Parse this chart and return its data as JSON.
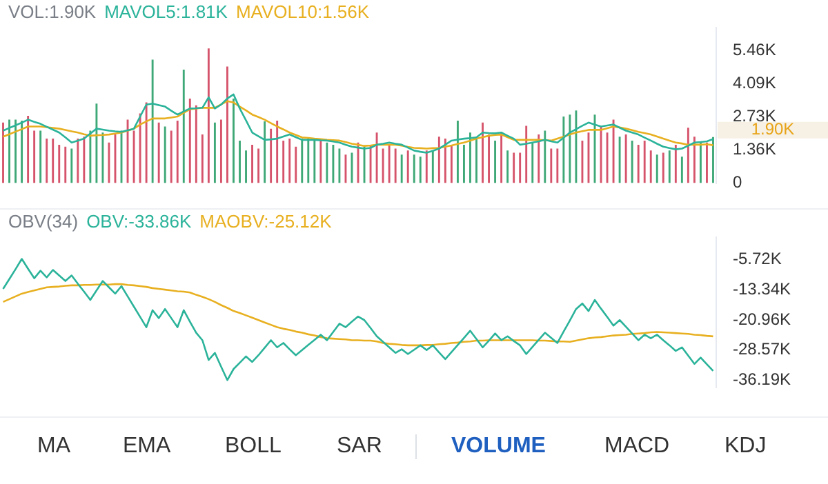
{
  "chart_data": [
    {
      "type": "bar",
      "title": "VOL:1.90K",
      "legend": "top left",
      "tick_labels": "y",
      "marker": "none",
      "categories": [
        null,
        null,
        null,
        null,
        null,
        null,
        null,
        null,
        null,
        null,
        null,
        null,
        null,
        null,
        null,
        null,
        null,
        null,
        null,
        null,
        null,
        null,
        null,
        null,
        null,
        null,
        null,
        null,
        null,
        null,
        null,
        null,
        null,
        null,
        null,
        null,
        null,
        null,
        null,
        null,
        null,
        null,
        null,
        null,
        null,
        null,
        null,
        null,
        null,
        null,
        null,
        null,
        null,
        null,
        null,
        null,
        null,
        null,
        null,
        null,
        null,
        null,
        null,
        null,
        null,
        null,
        null,
        null,
        null,
        null,
        null,
        null,
        null,
        null,
        null,
        null,
        null,
        null,
        null,
        null,
        null,
        null,
        null,
        null,
        null,
        null,
        null,
        null,
        null,
        null,
        null,
        null,
        null,
        null,
        null,
        null,
        null,
        null,
        null,
        null,
        null,
        null,
        null,
        null,
        null,
        null,
        null,
        null,
        null,
        null,
        null,
        null,
        null,
        null,
        null
      ],
      "series": [
        {
          "type": "bar",
          "colors": [
            "#d6546b",
            "#3fa877",
            "#3fa877",
            "#3fa877",
            "#d6546b",
            "#d6546b",
            "#3fa877",
            "#d6546b",
            "#d6546b",
            "#d6546b",
            "#d6546b",
            "#3fa877",
            "#d6546b",
            "#d6546b",
            "#3fa877",
            "#3fa877",
            "#3fa877",
            "#d6546b",
            "#d6546b",
            "#3fa877",
            "#d6546b",
            "#d6546b",
            "#d6546b",
            "#d6546b",
            "#3fa877",
            "#d6546b",
            "#3fa877",
            "#d6546b",
            "#d6546b",
            "#3fa877",
            "#d6546b",
            "#d6546b",
            "#d6546b",
            "#d6546b",
            "#3fa877",
            "#d6546b",
            "#d6546b",
            "#3fa877",
            "#3fa877",
            "#3fa877",
            "#d6546b",
            "#d6546b",
            "#3fa877",
            "#d6546b",
            "#d6546b",
            "#d6546b",
            "#d6546b",
            "#d6546b",
            "#3fa877",
            "#3fa877",
            "#3fa877",
            "#d6546b",
            "#3fa877",
            "#3fa877",
            "#3fa877",
            "#d6546b",
            "#3fa877",
            "#d6546b",
            "#3fa877",
            "#d6546b",
            "#d6546b",
            "#d6546b",
            "#d6546b",
            "#d6546b",
            "#3fa877",
            "#d6546b",
            "#3fa877",
            "#3fa877",
            "#d6546b",
            "#3fa877",
            "#d6546b",
            "#d6546b",
            "#d6546b",
            "#3fa877",
            "#3fa877",
            "#3fa877",
            "#3fa877",
            "#d6546b",
            "#d6546b",
            "#3fa877",
            "#d6546b",
            "#3fa877",
            "#d6546b",
            "#d6546b",
            "#d6546b",
            "#3fa877",
            "#d6546b",
            "#3fa877",
            "#d6546b",
            "#d6546b",
            "#3fa877",
            "#3fa877",
            "#3fa877",
            "#d6546b",
            "#d6546b",
            "#3fa877",
            "#d6546b",
            "#d6546b",
            "#d6546b",
            "#3fa877",
            "#d6546b",
            "#3fa877",
            "#d6546b",
            "#d6546b",
            "#d6546b",
            "#3fa877",
            "#d6546b",
            "#3fa877",
            "#d6546b",
            "#3fa877",
            "#d6546b",
            "#d6546b",
            "#3fa877",
            "#d6546b",
            "#3fa877"
          ],
          "values": [
            2490,
            2610,
            2610,
            2570,
            2770,
            2160,
            2160,
            1830,
            1830,
            1580,
            1500,
            1420,
            1830,
            1910,
            2160,
            3270,
            2080,
            1670,
            2000,
            2160,
            2610,
            2160,
            2870,
            3320,
            5080,
            2490,
            2330,
            2160,
            2570,
            4670,
            3480,
            3200,
            2000,
            5540,
            2490,
            2610,
            4800,
            3480,
            1750,
            1340,
            1580,
            1420,
            2540,
            2240,
            2570,
            1750,
            1830,
            1500,
            1830,
            1830,
            1750,
            1750,
            1670,
            1580,
            1420,
            1170,
            1250,
            1670,
            1500,
            1580,
            2080,
            1420,
            1580,
            1420,
            1170,
            1340,
            1170,
            1090,
            1340,
            1340,
            1910,
            1830,
            1580,
            2570,
            1580,
            2080,
            1910,
            2490,
            2000,
            1750,
            2080,
            1340,
            1250,
            1250,
            2360,
            1670,
            2000,
            2160,
            1420,
            1420,
            2740,
            2820,
            2990,
            1750,
            2080,
            2820,
            2330,
            2080,
            2610,
            1910,
            2000,
            1750,
            1580,
            1750,
            1340,
            1170,
            1250,
            1340,
            1580,
            1090,
            2280,
            1910,
            1670,
            1670,
            1900
          ]
        },
        {
          "type": "line",
          "name": "MAVOL5:1.81K",
          "color": "#2bb39a",
          "values": [
            2160,
            2270,
            2380,
            2490,
            2610,
            2520,
            2440,
            2320,
            2200,
            2080,
            1880,
            1670,
            1750,
            1830,
            2040,
            2240,
            2200,
            2160,
            2130,
            2110,
            2170,
            2240,
            2740,
            3230,
            3270,
            3210,
            3150,
            2980,
            2820,
            2950,
            3070,
            3080,
            3100,
            3530,
            3070,
            3230,
            3480,
            3650,
            3070,
            2580,
            2080,
            1930,
            1780,
            1800,
            1830,
            1920,
            2000,
            1890,
            1780,
            1780,
            1780,
            1760,
            1750,
            1710,
            1670,
            1580,
            1500,
            1460,
            1420,
            1450,
            1580,
            1620,
            1670,
            1620,
            1580,
            1460,
            1340,
            1290,
            1250,
            1330,
            1420,
            1580,
            1750,
            1790,
            1830,
            1850,
            1880,
            2080,
            2060,
            2050,
            2080,
            1950,
            1830,
            1580,
            1620,
            1670,
            1720,
            1780,
            1720,
            1670,
            1870,
            2080,
            2220,
            2360,
            2490,
            2410,
            2330,
            2370,
            2410,
            2280,
            2160,
            2080,
            2000,
            1870,
            1750,
            1620,
            1500,
            1440,
            1390,
            1420,
            1540,
            1670,
            1690,
            1720,
            1810
          ]
        },
        {
          "type": "line",
          "name": "MAVOL10:1.56K",
          "color": "#e8b020",
          "values": [
            1910,
            2010,
            2120,
            2220,
            2330,
            2330,
            2330,
            2300,
            2270,
            2240,
            2190,
            2130,
            2080,
            2010,
            1950,
            1970,
            1980,
            2000,
            2040,
            2080,
            2160,
            2240,
            2410,
            2540,
            2660,
            2660,
            2660,
            2700,
            2740,
            2890,
            3040,
            3070,
            3100,
            3100,
            3100,
            3240,
            3370,
            3320,
            3150,
            2990,
            2820,
            2720,
            2610,
            2470,
            2330,
            2210,
            2080,
            1980,
            1880,
            1860,
            1830,
            1810,
            1780,
            1770,
            1750,
            1690,
            1620,
            1580,
            1530,
            1550,
            1580,
            1580,
            1580,
            1580,
            1540,
            1490,
            1450,
            1440,
            1420,
            1440,
            1450,
            1500,
            1550,
            1610,
            1670,
            1750,
            1830,
            1890,
            1950,
            1980,
            2000,
            1890,
            1780,
            1780,
            1780,
            1780,
            1780,
            1770,
            1750,
            1830,
            1910,
            2000,
            2080,
            2140,
            2190,
            2190,
            2190,
            2260,
            2330,
            2290,
            2240,
            2180,
            2110,
            2060,
            2000,
            1920,
            1830,
            1750,
            1670,
            1630,
            1580,
            1580,
            1580,
            1600,
            1560
          ]
        }
      ],
      "ylim": [
        0,
        6400
      ],
      "yticks": [
        0,
        {
          "value": 1365,
          "label": "1.36K"
        },
        {
          "value": 2730,
          "label": "2.73K"
        },
        {
          "value": 4095,
          "label": "4.09K"
        },
        {
          "value": 5460,
          "label": "5.46K"
        }
      ],
      "annotations": [
        "1.90K"
      ]
    },
    {
      "type": "line",
      "title": "OBV(34)",
      "legend": "top left",
      "tick_labels": "y",
      "marker": "none",
      "categories": [
        null,
        null,
        null,
        null,
        null,
        null,
        null,
        null,
        null,
        null,
        null,
        null,
        null,
        null,
        null,
        null,
        null,
        null,
        null,
        null,
        null,
        null,
        null,
        null,
        null,
        null,
        null,
        null,
        null,
        null,
        null,
        null,
        null,
        null,
        null,
        null,
        null,
        null,
        null,
        null,
        null,
        null,
        null,
        null,
        null,
        null,
        null,
        null,
        null,
        null,
        null,
        null,
        null,
        null,
        null,
        null,
        null,
        null,
        null,
        null,
        null,
        null,
        null,
        null,
        null,
        null,
        null,
        null,
        null,
        null,
        null,
        null,
        null,
        null,
        null,
        null,
        null,
        null,
        null,
        null,
        null,
        null,
        null,
        null,
        null,
        null,
        null,
        null,
        null,
        null,
        null,
        null,
        null,
        null,
        null,
        null,
        null,
        null,
        null,
        null,
        null,
        null,
        null,
        null,
        null,
        null,
        null,
        null,
        null,
        null,
        null,
        null,
        null,
        null,
        null
      ],
      "series": [
        {
          "name": "OBV:-33.86K",
          "color": "#2bb39a",
          "values": [
            -13100,
            -10600,
            -8100,
            -5500,
            -8000,
            -10400,
            -8500,
            -10200,
            -8300,
            -9700,
            -11100,
            -9700,
            -11800,
            -13800,
            -15900,
            -13500,
            -11100,
            -12700,
            -14300,
            -12400,
            -15000,
            -17600,
            -20200,
            -22800,
            -18500,
            -20500,
            -18200,
            -20500,
            -22800,
            -18500,
            -21400,
            -24200,
            -26100,
            -31100,
            -29300,
            -32800,
            -36200,
            -33400,
            -31800,
            -30200,
            -31600,
            -29900,
            -28000,
            -26100,
            -27900,
            -26800,
            -28400,
            -29900,
            -28600,
            -27300,
            -26000,
            -24700,
            -26100,
            -24000,
            -21900,
            -22800,
            -21400,
            -20100,
            -21000,
            -23000,
            -25100,
            -26500,
            -27900,
            -29300,
            -28400,
            -29600,
            -28500,
            -27400,
            -28600,
            -27400,
            -29200,
            -30900,
            -29100,
            -27300,
            -25500,
            -23700,
            -25800,
            -27900,
            -26200,
            -24400,
            -26100,
            -25100,
            -26300,
            -27400,
            -29600,
            -27800,
            -26000,
            -24200,
            -25500,
            -26800,
            -23900,
            -21100,
            -18200,
            -16800,
            -18700,
            -15900,
            -18100,
            -20200,
            -22400,
            -21000,
            -22700,
            -24400,
            -26100,
            -24700,
            -25600,
            -24700,
            -26100,
            -27400,
            -28800,
            -27900,
            -30000,
            -32100,
            -30500,
            -32200,
            -33860
          ]
        },
        {
          "name": "MAOBV:-25.12K",
          "color": "#e8b020",
          "values": [
            -16400,
            -15700,
            -15000,
            -14300,
            -13900,
            -13500,
            -13100,
            -12700,
            -12600,
            -12500,
            -12300,
            -12200,
            -12200,
            -12100,
            -12100,
            -12000,
            -12000,
            -12000,
            -11900,
            -11900,
            -12100,
            -12200,
            -12400,
            -12600,
            -12900,
            -13100,
            -13300,
            -13500,
            -13700,
            -13800,
            -14000,
            -14600,
            -15100,
            -15700,
            -16400,
            -17200,
            -17900,
            -18700,
            -19200,
            -19800,
            -20400,
            -21000,
            -21600,
            -22200,
            -22800,
            -23200,
            -23500,
            -23900,
            -24200,
            -24600,
            -24900,
            -25300,
            -25600,
            -25700,
            -25800,
            -25900,
            -26100,
            -26100,
            -26200,
            -26200,
            -26400,
            -26800,
            -27000,
            -27100,
            -27300,
            -27400,
            -27400,
            -27400,
            -27300,
            -27300,
            -27100,
            -27000,
            -26800,
            -26700,
            -26500,
            -26400,
            -26200,
            -26200,
            -26100,
            -26100,
            -26100,
            -26100,
            -26100,
            -26100,
            -26100,
            -26100,
            -26200,
            -26200,
            -26300,
            -26400,
            -26400,
            -26500,
            -26200,
            -25900,
            -25600,
            -25400,
            -25300,
            -25100,
            -24900,
            -24800,
            -24700,
            -24500,
            -24400,
            -24300,
            -24100,
            -24000,
            -24100,
            -24200,
            -24300,
            -24400,
            -24500,
            -24700,
            -24800,
            -25000,
            -25120
          ]
        }
      ],
      "ylim": [
        -38000,
        0
      ],
      "yticks": [
        {
          "value": -5720,
          "label": "-5.72K"
        },
        {
          "value": -13340,
          "label": "-13.34K"
        },
        {
          "value": -20960,
          "label": "-20.96K"
        },
        {
          "value": -28570,
          "label": "-28.57K"
        },
        {
          "value": -36190,
          "label": "-36.19K"
        }
      ]
    },
    {
      "type": "other",
      "annotations": [
        "MA",
        "EMA",
        "BOLL",
        "SAR",
        "VOLUME",
        "MACD",
        "KDJ"
      ]
    }
  ]
}
